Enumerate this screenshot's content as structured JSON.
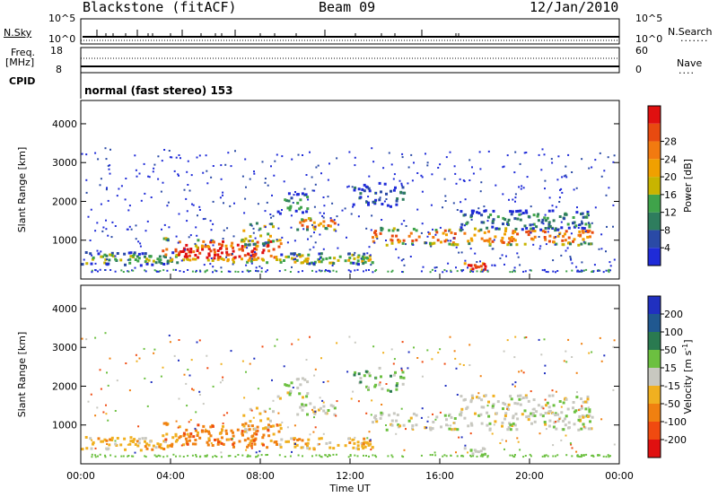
{
  "header": {
    "station": "Blackstone (fitACF)",
    "beam": "Beam 09",
    "date": "12/Jan/2010"
  },
  "top_panels": {
    "nsky_label": "N.Sky",
    "nsky_ticks": [
      "10^5",
      "10^0"
    ],
    "nsearch_label": "N.Search",
    "nsearch_ticks": [
      "10^5",
      "10^0"
    ],
    "freq_label_line1": "Freq.",
    "freq_label_line2": "[MHz]",
    "freq_ticks": [
      "18",
      "8"
    ],
    "nave_label": "Nave",
    "nave_ticks": [
      "60",
      "0"
    ],
    "cpid_label": "CPID",
    "cpid_text": "normal (fast stereo) 153"
  },
  "chart_data": [
    {
      "type": "heatmap",
      "name": "power",
      "ylabel": "Slant Range [km]",
      "ylim": [
        0,
        4600
      ],
      "yticks": [
        "1000",
        "2000",
        "3000",
        "4000"
      ],
      "colorbar_label": "Power [dB]",
      "colorbar_ticks": [
        "4",
        "8",
        "12",
        "16",
        "20",
        "24",
        "28"
      ],
      "colors": [
        "#1f2bd8",
        "#2a4aa6",
        "#2e7d5e",
        "#3fa34a",
        "#c8b400",
        "#f0a000",
        "#f27a10",
        "#e84a10",
        "#e01010"
      ]
    },
    {
      "type": "heatmap",
      "name": "velocity",
      "ylabel": "Slant Range [km]",
      "ylim": [
        0,
        4600
      ],
      "yticks": [
        "1000",
        "2000",
        "3000",
        "4000"
      ],
      "colorbar_label": "Velocity [m s",
      "colorbar_label_sup": "-1",
      "colorbar_ticks": [
        "200",
        "100",
        "50",
        "15",
        "-15",
        "-50",
        "-100",
        "-200"
      ],
      "colors": [
        "#2030c0",
        "#205890",
        "#2a7a50",
        "#6cc040",
        "#c8c8c0",
        "#f0b020",
        "#f08010",
        "#f04a10",
        "#e01010"
      ],
      "xlabel": "Time UT",
      "xticks": [
        "00:00",
        "04:00",
        "08:00",
        "12:00",
        "16:00",
        "20:00",
        "00:00"
      ]
    }
  ]
}
